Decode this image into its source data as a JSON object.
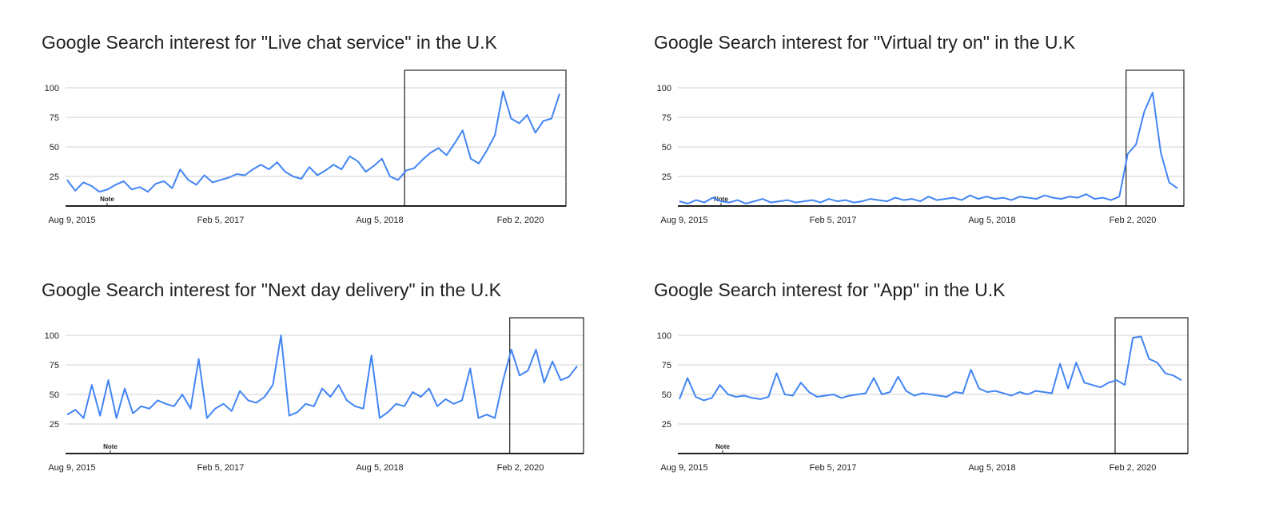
{
  "chart_data": [
    {
      "type": "line",
      "title": "Google Search interest for \"Live chat service\" in the U.K",
      "xlabel": "",
      "ylabel": "",
      "x_tick_labels": [
        "Aug 9, 2015",
        "Feb 5, 2017",
        "Aug 5, 2018",
        "Feb 2, 2020"
      ],
      "y_ticks": [
        25,
        50,
        75,
        100
      ],
      "ylim": [
        0,
        100
      ],
      "grid": true,
      "note_label": "Note",
      "highlight_from": "2019-02",
      "series_color": "#4285f4",
      "x": [
        "2015-08",
        "2015-09",
        "2015-10",
        "2015-11",
        "2015-12",
        "2016-01",
        "2016-02",
        "2016-03",
        "2016-04",
        "2016-05",
        "2016-06",
        "2016-07",
        "2016-08",
        "2016-09",
        "2016-10",
        "2016-11",
        "2016-12",
        "2017-01",
        "2017-02",
        "2017-03",
        "2017-04",
        "2017-05",
        "2017-06",
        "2017-07",
        "2017-08",
        "2017-09",
        "2017-10",
        "2017-11",
        "2017-12",
        "2018-01",
        "2018-02",
        "2018-03",
        "2018-04",
        "2018-05",
        "2018-06",
        "2018-07",
        "2018-08",
        "2018-09",
        "2018-10",
        "2018-11",
        "2018-12",
        "2019-01",
        "2019-02",
        "2019-03",
        "2019-04",
        "2019-05",
        "2019-06",
        "2019-07",
        "2019-08",
        "2019-09",
        "2019-10",
        "2019-11",
        "2019-12",
        "2020-01",
        "2020-02",
        "2020-03",
        "2020-04",
        "2020-05",
        "2020-06",
        "2020-07",
        "2020-08",
        "2020-09"
      ],
      "values": [
        22,
        13,
        20,
        17,
        12,
        14,
        18,
        21,
        14,
        16,
        12,
        19,
        21,
        15,
        31,
        22,
        18,
        26,
        20,
        22,
        24,
        27,
        26,
        31,
        35,
        31,
        37,
        29,
        25,
        23,
        33,
        26,
        30,
        35,
        31,
        42,
        38,
        29,
        34,
        40,
        25,
        22,
        30,
        32,
        39,
        45,
        49,
        43,
        53,
        64,
        40,
        36,
        47,
        60,
        97,
        74,
        70,
        77,
        62,
        72,
        74,
        95
      ]
    },
    {
      "type": "line",
      "title": "Google Search interest for \"Virtual try on\" in the U.K",
      "xlabel": "",
      "ylabel": "",
      "x_tick_labels": [
        "Aug 9, 2015",
        "Feb 5, 2017",
        "Aug 5, 2018",
        "Feb 2, 2020"
      ],
      "y_ticks": [
        25,
        50,
        75,
        100
      ],
      "ylim": [
        0,
        100
      ],
      "grid": true,
      "note_label": "Note",
      "highlight_from": "2020-02",
      "series_color": "#4285f4",
      "x": [
        "2015-08",
        "2015-09",
        "2015-10",
        "2015-11",
        "2015-12",
        "2016-01",
        "2016-02",
        "2016-03",
        "2016-04",
        "2016-05",
        "2016-06",
        "2016-07",
        "2016-08",
        "2016-09",
        "2016-10",
        "2016-11",
        "2016-12",
        "2017-01",
        "2017-02",
        "2017-03",
        "2017-04",
        "2017-05",
        "2017-06",
        "2017-07",
        "2017-08",
        "2017-09",
        "2017-10",
        "2017-11",
        "2017-12",
        "2018-01",
        "2018-02",
        "2018-03",
        "2018-04",
        "2018-05",
        "2018-06",
        "2018-07",
        "2018-08",
        "2018-09",
        "2018-10",
        "2018-11",
        "2018-12",
        "2019-01",
        "2019-02",
        "2019-03",
        "2019-04",
        "2019-05",
        "2019-06",
        "2019-07",
        "2019-08",
        "2019-09",
        "2019-10",
        "2019-11",
        "2019-12",
        "2020-01",
        "2020-02",
        "2020-03",
        "2020-04",
        "2020-05",
        "2020-06",
        "2020-07",
        "2020-08"
      ],
      "values": [
        4,
        2,
        5,
        3,
        7,
        4,
        3,
        5,
        2,
        4,
        6,
        3,
        4,
        5,
        3,
        4,
        5,
        3,
        6,
        4,
        5,
        3,
        4,
        6,
        5,
        4,
        7,
        5,
        6,
        4,
        8,
        5,
        6,
        7,
        5,
        9,
        6,
        8,
        6,
        7,
        5,
        8,
        7,
        6,
        9,
        7,
        6,
        8,
        7,
        10,
        6,
        7,
        5,
        8,
        44,
        52,
        80,
        96,
        45,
        20,
        15
      ]
    },
    {
      "type": "line",
      "title": "Google Search interest for \"Next day delivery\" in the U.K",
      "xlabel": "",
      "ylabel": "",
      "x_tick_labels": [
        "Aug 9, 2015",
        "Feb 5, 2017",
        "Aug 5, 2018",
        "Feb 2, 2020"
      ],
      "y_ticks": [
        25,
        50,
        75,
        100
      ],
      "ylim": [
        0,
        100
      ],
      "grid": true,
      "note_label": "Note",
      "highlight_from": "2020-02",
      "series_color": "#4285f4",
      "x": [
        "2015-08",
        "2015-09",
        "2015-10",
        "2015-11",
        "2015-12",
        "2016-01",
        "2016-02",
        "2016-03",
        "2016-04",
        "2016-05",
        "2016-06",
        "2016-07",
        "2016-08",
        "2016-09",
        "2016-10",
        "2016-11",
        "2016-12",
        "2017-01",
        "2017-02",
        "2017-03",
        "2017-04",
        "2017-05",
        "2017-06",
        "2017-07",
        "2017-08",
        "2017-09",
        "2017-10",
        "2017-11",
        "2017-12",
        "2018-01",
        "2018-02",
        "2018-03",
        "2018-04",
        "2018-05",
        "2018-06",
        "2018-07",
        "2018-08",
        "2018-09",
        "2018-10",
        "2018-11",
        "2018-12",
        "2019-01",
        "2019-02",
        "2019-03",
        "2019-04",
        "2019-05",
        "2019-06",
        "2019-07",
        "2019-08",
        "2019-09",
        "2019-10",
        "2019-11",
        "2019-12",
        "2020-01",
        "2020-02",
        "2020-03",
        "2020-04",
        "2020-05",
        "2020-06",
        "2020-07",
        "2020-08",
        "2020-09",
        "2020-10"
      ],
      "values": [
        33,
        37,
        30,
        58,
        32,
        62,
        30,
        55,
        34,
        40,
        38,
        45,
        42,
        40,
        50,
        38,
        80,
        30,
        38,
        42,
        36,
        53,
        45,
        43,
        48,
        58,
        100,
        32,
        35,
        42,
        40,
        55,
        48,
        58,
        45,
        40,
        38,
        83,
        30,
        35,
        42,
        40,
        52,
        48,
        55,
        40,
        46,
        42,
        45,
        72,
        30,
        33,
        30,
        62,
        88,
        66,
        70,
        88,
        60,
        78,
        62,
        65,
        74
      ]
    },
    {
      "type": "line",
      "title": "Google Search interest for \"App\" in the U.K",
      "xlabel": "",
      "ylabel": "",
      "x_tick_labels": [
        "Aug 9, 2015",
        "Feb 5, 2017",
        "Aug 5, 2018",
        "Feb 2, 2020"
      ],
      "y_ticks": [
        25,
        50,
        75,
        100
      ],
      "ylim": [
        0,
        100
      ],
      "grid": true,
      "note_label": "Note",
      "highlight_from": "2020-02",
      "series_color": "#4285f4",
      "x": [
        "2015-08",
        "2015-09",
        "2015-10",
        "2015-11",
        "2015-12",
        "2016-01",
        "2016-02",
        "2016-03",
        "2016-04",
        "2016-05",
        "2016-06",
        "2016-07",
        "2016-08",
        "2016-09",
        "2016-10",
        "2016-11",
        "2016-12",
        "2017-01",
        "2017-02",
        "2017-03",
        "2017-04",
        "2017-05",
        "2017-06",
        "2017-07",
        "2017-08",
        "2017-09",
        "2017-10",
        "2017-11",
        "2017-12",
        "2018-01",
        "2018-02",
        "2018-03",
        "2018-04",
        "2018-05",
        "2018-06",
        "2018-07",
        "2018-08",
        "2018-09",
        "2018-10",
        "2018-11",
        "2018-12",
        "2019-01",
        "2019-02",
        "2019-03",
        "2019-04",
        "2019-05",
        "2019-06",
        "2019-07",
        "2019-08",
        "2019-09",
        "2019-10",
        "2019-11",
        "2019-12",
        "2020-01",
        "2020-02",
        "2020-03",
        "2020-04",
        "2020-05",
        "2020-06",
        "2020-07",
        "2020-08",
        "2020-09",
        "2020-10"
      ],
      "values": [
        46,
        64,
        48,
        45,
        47,
        58,
        50,
        48,
        49,
        47,
        46,
        48,
        68,
        50,
        49,
        60,
        52,
        48,
        49,
        50,
        47,
        49,
        50,
        51,
        64,
        50,
        52,
        65,
        53,
        49,
        51,
        50,
        49,
        48,
        52,
        51,
        71,
        55,
        52,
        53,
        51,
        49,
        52,
        50,
        53,
        52,
        51,
        76,
        55,
        77,
        60,
        58,
        56,
        60,
        62,
        58,
        98,
        99,
        80,
        77,
        68,
        66,
        62
      ]
    }
  ]
}
